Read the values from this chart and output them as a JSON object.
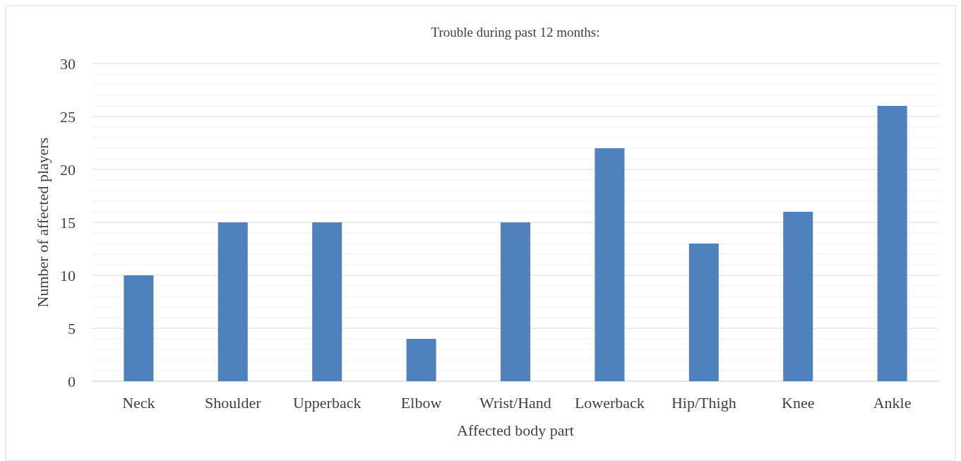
{
  "chart_data": {
    "type": "bar",
    "title": "Trouble during past 12 months:",
    "xlabel": "Affected body part",
    "ylabel": "Number of affected players",
    "categories": [
      "Neck",
      "Shoulder",
      "Upperback",
      "Elbow",
      "Wrist/Hand",
      "Lowerback",
      "Hip/Thigh",
      "Knee",
      "Ankle"
    ],
    "values": [
      10,
      15,
      15,
      4,
      15,
      22,
      13,
      16,
      26
    ],
    "color": "#4f81bd",
    "ylim": [
      0,
      30
    ],
    "yticks": [
      0,
      {
        "value": 1,
        "label": null
      },
      {
        "value": 2,
        "label": null
      },
      {
        "value": 3,
        "label": null
      },
      {
        "value": 4,
        "label": null
      },
      5,
      {
        "value": 6,
        "label": null
      },
      {
        "value": 7,
        "label": null
      },
      {
        "value": 8,
        "label": null
      },
      {
        "value": 9,
        "label": null
      },
      10,
      {
        "value": 11,
        "label": null
      },
      {
        "value": 12,
        "label": null
      },
      {
        "value": 13,
        "label": null
      },
      {
        "value": 14,
        "label": null
      },
      15,
      {
        "value": 16,
        "label": null
      },
      {
        "value": 17,
        "label": null
      },
      {
        "value": 18,
        "label": null
      },
      {
        "value": 19,
        "label": null
      },
      20,
      {
        "value": 21,
        "label": null
      },
      {
        "value": 22,
        "label": null
      },
      {
        "value": 23,
        "label": null
      },
      {
        "value": 24,
        "label": null
      },
      25,
      {
        "value": 26,
        "label": null
      },
      {
        "value": 27,
        "label": null
      },
      {
        "value": 28,
        "label": null
      },
      {
        "value": 29,
        "label": null
      },
      30
    ],
    "grid": true
  }
}
